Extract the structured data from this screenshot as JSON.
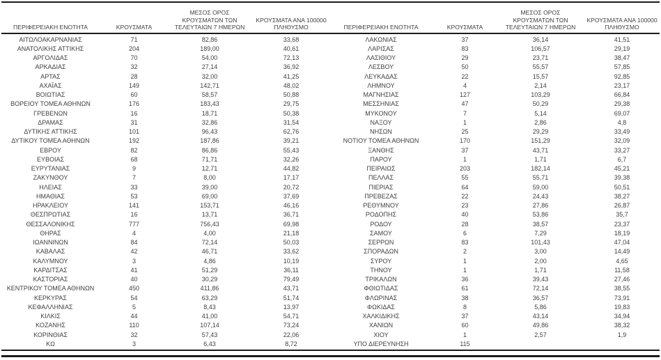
{
  "page": {
    "background_color": "#ffffff",
    "text_color": "#3f3f3f",
    "rule_color": "#1a1a1a"
  },
  "table": {
    "headers": {
      "region": "ΠΕΡΙΦΕΡΕΙΑΚΗ ΕΝΟΤΗΤΑ",
      "cases": "ΚΡΟΥΣΜΑΤΑ",
      "avg7": "ΜΕΣΟΣ ΟΡΟΣ\nΚΡΟΥΣΜΑΤΩΝ ΤΩΝ\nΤΕΛΕΥΤΑΙΩΝ 7 ΗΜΕΡΩΝ",
      "per100k": "ΚΡΟΥΣΜΑΤΑ ΑΝΑ 100000\nΠΛΗΘΥΣΜΟ"
    },
    "left_rows": [
      [
        "ΑΙΤΩΛΟΑΚΑΡΝΑΝΙΑΣ",
        "71",
        "82,86",
        "33,68"
      ],
      [
        "ΑΝΑΤΟΛΙΚΗΣ ΑΤΤΙΚΗΣ",
        "204",
        "189,00",
        "40,61"
      ],
      [
        "ΑΡΓΟΛΙΔΑΣ",
        "70",
        "54,00",
        "72,13"
      ],
      [
        "ΑΡΚΑΔΙΑΣ",
        "32",
        "27,14",
        "36,92"
      ],
      [
        "ΑΡΤΑΣ",
        "28",
        "32,00",
        "41,25"
      ],
      [
        "ΑΧΑΪΑΣ",
        "149",
        "142,71",
        "48,02"
      ],
      [
        "ΒΟΙΩΤΙΑΣ",
        "60",
        "58,57",
        "50,88"
      ],
      [
        "ΒΟΡΕΙΟΥ ΤΟΜΕΑ ΑΘΗΝΩΝ",
        "176",
        "183,43",
        "29,75"
      ],
      [
        "ΓΡΕΒΕΝΩΝ",
        "16",
        "18,71",
        "50,38"
      ],
      [
        "ΔΡΑΜΑΣ",
        "31",
        "32,86",
        "31,54"
      ],
      [
        "ΔΥΤΙΚΗΣ ΑΤΤΙΚΗΣ",
        "101",
        "96,43",
        "62,76"
      ],
      [
        "ΔΥΤΙΚΟΥ ΤΟΜΕΑ ΑΘΗΝΩΝ",
        "192",
        "187,86",
        "39,21"
      ],
      [
        "ΕΒΡΟΥ",
        "82",
        "86,86",
        "55,43"
      ],
      [
        "ΕΥΒΟΙΑΣ",
        "68",
        "71,71",
        "32,26"
      ],
      [
        "ΕΥΡΥΤΑΝΙΑΣ",
        "9",
        "12,71",
        "44,82"
      ],
      [
        "ΖΑΚΥΝΘΟΥ",
        "7",
        "8,00",
        "17,17"
      ],
      [
        "ΗΛΕΙΑΣ",
        "33",
        "39,00",
        "20,72"
      ],
      [
        "ΗΜΑΘΙΑΣ",
        "53",
        "69,00",
        "37,69"
      ],
      [
        "ΗΡΑΚΛΕΙΟΥ",
        "141",
        "153,71",
        "46,16"
      ],
      [
        "ΘΕΣΠΡΩΤΙΑΣ",
        "16",
        "13,71",
        "36,71"
      ],
      [
        "ΘΕΣΣΑΛΟΝΙΚΗΣ",
        "777",
        "756,43",
        "69,98"
      ],
      [
        "ΘΗΡΑΣ",
        "4",
        "4,00",
        "21,18"
      ],
      [
        "ΙΩΑΝΝΙΝΩΝ",
        "84",
        "72,14",
        "50,03"
      ],
      [
        "ΚΑΒΑΛΑΣ",
        "42",
        "46,71",
        "33,62"
      ],
      [
        "ΚΑΛΥΜΝΟΥ",
        "3",
        "4,86",
        "10,19"
      ],
      [
        "ΚΑΡΔΙΤΣΑΣ",
        "41",
        "51,29",
        "36,11"
      ],
      [
        "ΚΑΣΤΟΡΙΑΣ",
        "40",
        "30,29",
        "79,49"
      ],
      [
        "ΚΕΝΤΡΙΚΟΥ ΤΟΜΕΑ ΑΘΗΝΩΝ",
        "450",
        "411,86",
        "43,71"
      ],
      [
        "ΚΕΡΚΥΡΑΣ",
        "54",
        "63,29",
        "51,74"
      ],
      [
        "ΚΕΦΑΛΛΗΝΙΑΣ",
        "5",
        "8,43",
        "13,97"
      ],
      [
        "ΚΙΛΚΙΣ",
        "44",
        "41,00",
        "54,71"
      ],
      [
        "ΚΟΖΑΝΗΣ",
        "110",
        "107,14",
        "73,24"
      ],
      [
        "ΚΟΡΙΝΘΙΑΣ",
        "32",
        "57,43",
        "22,06"
      ],
      [
        "ΚΩ",
        "3",
        "6,43",
        "8,72"
      ]
    ],
    "right_rows": [
      [
        "ΛΑΚΩΝΙΑΣ",
        "37",
        "36,14",
        "41,51"
      ],
      [
        "ΛΑΡΙΣΑΣ",
        "83",
        "106,57",
        "29,19"
      ],
      [
        "ΛΑΣΙΘΙΟΥ",
        "29",
        "23,71",
        "38,47"
      ],
      [
        "ΛΕΣΒΟΥ",
        "50",
        "55,57",
        "57,85"
      ],
      [
        "ΛΕΥΚΑΔΑΣ",
        "22",
        "15,57",
        "92,85"
      ],
      [
        "ΛΗΜΝΟΥ",
        "4",
        "2,14",
        "23,17"
      ],
      [
        "ΜΑΓΝΗΣΙΑΣ",
        "127",
        "103,29",
        "66,84"
      ],
      [
        "ΜΕΣΣΗΝΙΑΣ",
        "47",
        "50,29",
        "29,38"
      ],
      [
        "ΜΥΚΟΝΟΥ",
        "7",
        "5,14",
        "69,07"
      ],
      [
        "ΝΑΞΟΥ",
        "1",
        "2,86",
        "4,8"
      ],
      [
        "ΝΗΣΩΝ",
        "25",
        "29,29",
        "33,49"
      ],
      [
        "ΝΟΤΙΟΥ ΤΟΜΕΑ ΑΘΗΝΩΝ",
        "170",
        "151,29",
        "32,09"
      ],
      [
        "ΞΑΝΘΗΣ",
        "37",
        "43,71",
        "33,27"
      ],
      [
        "ΠΑΡΟΥ",
        "1",
        "1,71",
        "6,7"
      ],
      [
        "ΠΕΙΡΑΙΩΣ",
        "203",
        "182,14",
        "45,21"
      ],
      [
        "ΠΕΛΛΑΣ",
        "55",
        "55,71",
        "39,38"
      ],
      [
        "ΠΙΕΡΙΑΣ",
        "64",
        "59,00",
        "50,51"
      ],
      [
        "ΠΡΕΒΕΖΑΣ",
        "22",
        "24,43",
        "38,27"
      ],
      [
        "ΡΕΘΥΜΝΟΥ",
        "23",
        "27,86",
        "26,87"
      ],
      [
        "ΡΟΔΟΠΗΣ",
        "40",
        "53,86",
        "35,7"
      ],
      [
        "ΡΟΔΟΥ",
        "28",
        "38,57",
        "23,37"
      ],
      [
        "ΣΑΜΟΥ",
        "6",
        "7,29",
        "18,19"
      ],
      [
        "ΣΕΡΡΩΝ",
        "83",
        "101,43",
        "47,04"
      ],
      [
        "ΣΠΟΡΑΔΩΝ",
        "2",
        "3,00",
        "14,49"
      ],
      [
        "ΣΥΡΟΥ",
        "1",
        "2,00",
        "4,65"
      ],
      [
        "ΤΗΝΟΥ",
        "1",
        "1,71",
        "11,58"
      ],
      [
        "ΤΡΙΚΑΛΩΝ",
        "36",
        "39,43",
        "27,46"
      ],
      [
        "ΦΘΙΩΤΙΔΑΣ",
        "61",
        "72,14",
        "38,55"
      ],
      [
        "ΦΛΩΡΙΝΑΣ",
        "38",
        "36,57",
        "73,91"
      ],
      [
        "ΦΩΚΙΔΑΣ",
        "8",
        "5,86",
        "19,83"
      ],
      [
        "ΧΑΛΚΙΔΙΚΗΣ",
        "37",
        "43,14",
        "34,94"
      ],
      [
        "ΧΑΝΙΩΝ",
        "60",
        "49,86",
        "38,32"
      ],
      [
        "ΧΙΟΥ",
        "1",
        "2,57",
        "1,9"
      ],
      [
        "ΥΠΟ ΔΙΕΡΕΥΝΗΣΗ",
        "115",
        "",
        ""
      ]
    ]
  }
}
